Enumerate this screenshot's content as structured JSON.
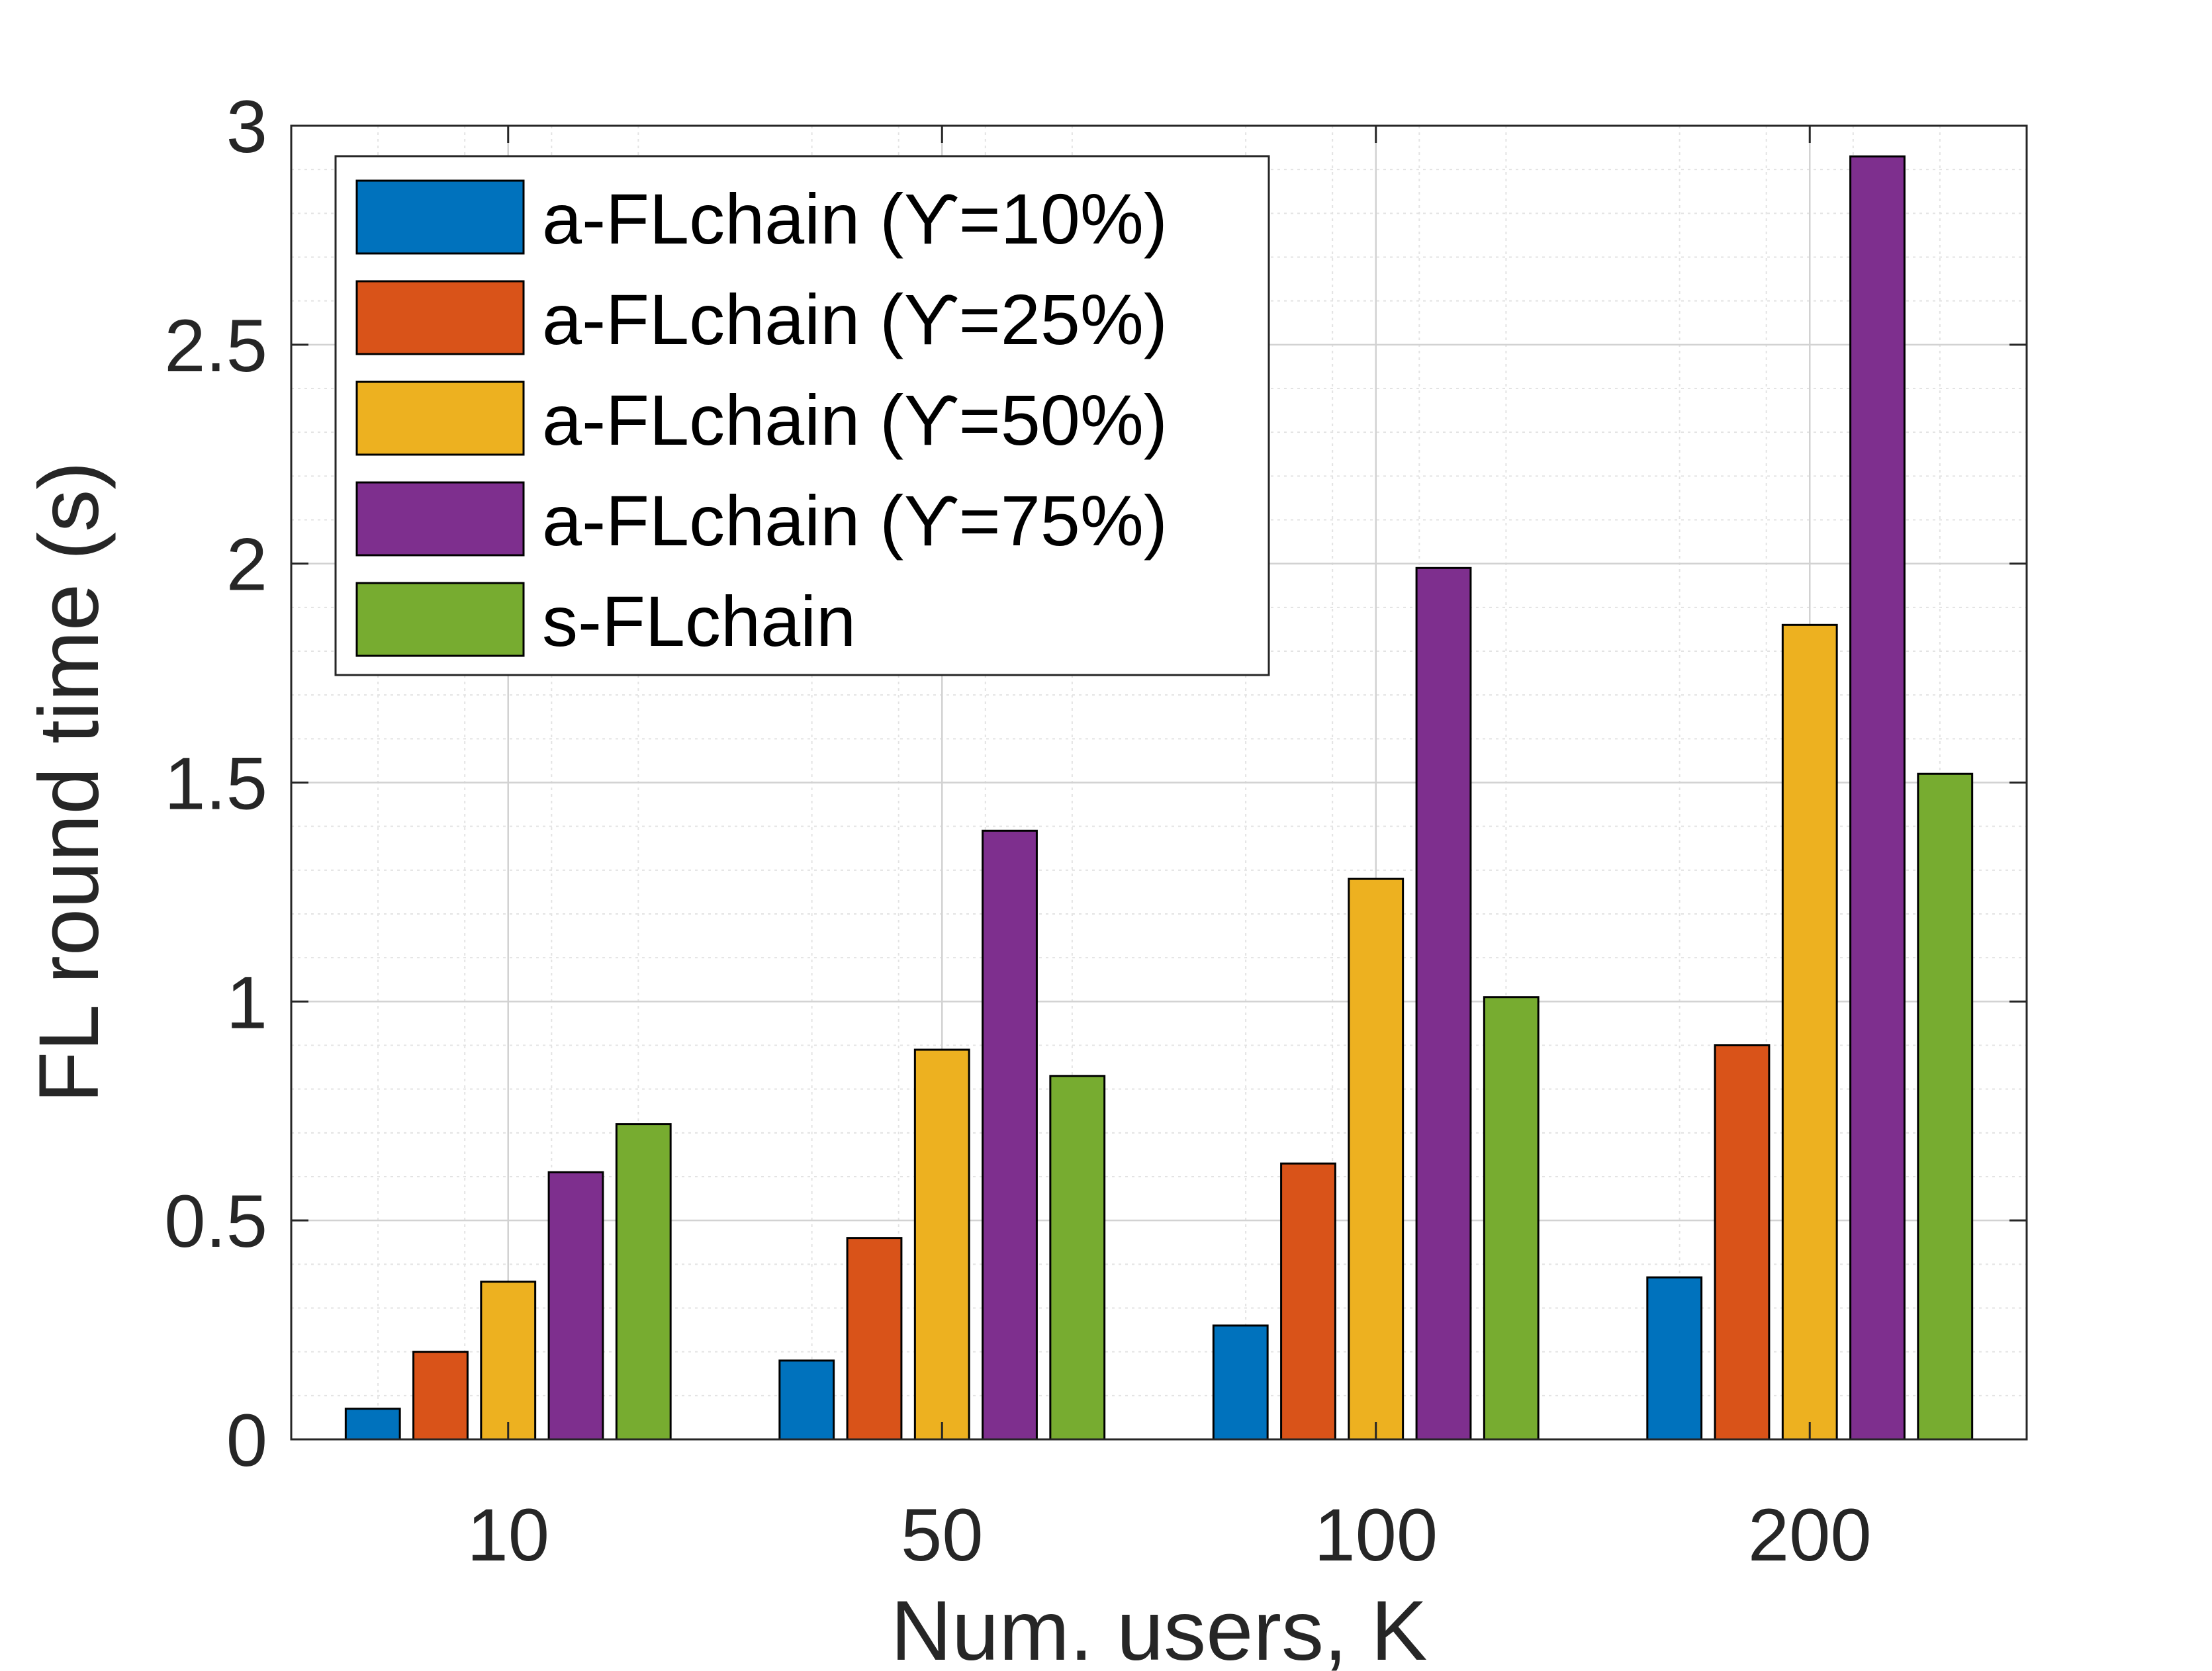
{
  "chart_data": {
    "type": "bar",
    "title": "",
    "xlabel": "Num. users, K",
    "ylabel": "FL round time (s)",
    "categories": [
      "10",
      "50",
      "100",
      "200"
    ],
    "ylim": [
      0,
      3
    ],
    "yticks": [
      "0",
      "0.5",
      "1",
      "1.5",
      "2",
      "2.5",
      "3"
    ],
    "grid": true,
    "minor_grid": true,
    "legend_position": "top-left",
    "series": [
      {
        "name": "a-FLchain (ϒ=10%)",
        "color": "#0072BD",
        "values": [
          0.07,
          0.18,
          0.26,
          0.37
        ]
      },
      {
        "name": "a-FLchain (ϒ=25%)",
        "color": "#D95319",
        "values": [
          0.2,
          0.46,
          0.63,
          0.9
        ]
      },
      {
        "name": "a-FLchain (ϒ=50%)",
        "color": "#EDB120",
        "values": [
          0.36,
          0.89,
          1.28,
          1.86
        ]
      },
      {
        "name": "a-FLchain (ϒ=75%)",
        "color": "#7E2F8E",
        "values": [
          0.61,
          1.39,
          1.99,
          2.93
        ]
      },
      {
        "name": "s-FLchain",
        "color": "#77AC30",
        "values": [
          0.72,
          0.83,
          1.01,
          1.52
        ]
      }
    ]
  }
}
